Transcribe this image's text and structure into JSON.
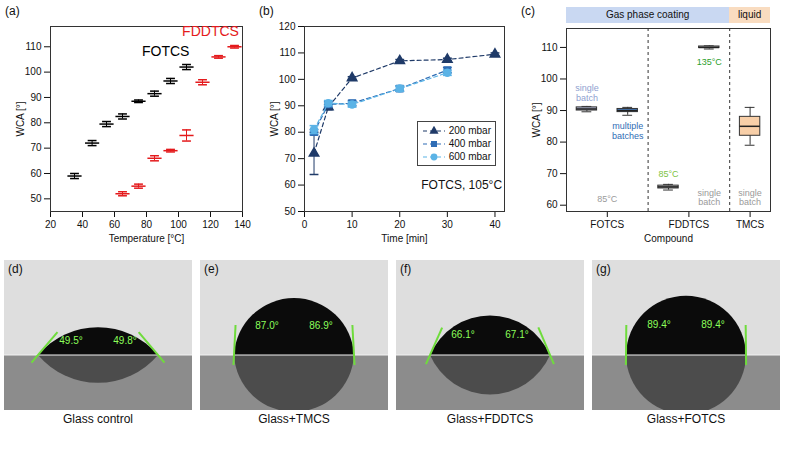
{
  "chart_data": [
    {
      "panel": "(a)",
      "type": "scatter",
      "xlabel": "Temperature [°C]",
      "ylabel": "WCA [°]",
      "xlim": [
        20,
        140
      ],
      "xticks": [
        20,
        40,
        60,
        80,
        100,
        120,
        140
      ],
      "ylim": [
        45,
        118
      ],
      "yticks": [
        50,
        60,
        70,
        80,
        90,
        100,
        110
      ],
      "series": [
        {
          "name": "FOTCS",
          "color": "#000000",
          "marker": "dash",
          "label_x": 92,
          "label_y": 108,
          "x": [
            35,
            46,
            55,
            65,
            75,
            85,
            95,
            105
          ],
          "values": [
            59,
            72,
            79.5,
            82.5,
            88.5,
            91.5,
            96.5,
            102
          ],
          "errors": [
            1,
            1,
            1,
            1,
            0.5,
            1,
            1,
            1
          ]
        },
        {
          "name": "FDDTCS",
          "color": "#e41a1c",
          "marker": "dash",
          "label_x": 120,
          "label_y": 116,
          "x": [
            65,
            75,
            85,
            95,
            105,
            115,
            125,
            135
          ],
          "values": [
            52,
            55,
            66,
            69,
            75,
            96,
            106,
            110
          ],
          "errors": [
            0.8,
            0.8,
            1,
            0.5,
            2.2,
            1,
            0.5,
            0.5
          ]
        }
      ]
    },
    {
      "panel": "(b)",
      "type": "line",
      "xlabel": "Time [min]",
      "ylabel": "WCA [°]",
      "xlim": [
        0,
        42
      ],
      "xticks": [
        0,
        10,
        20,
        30,
        40
      ],
      "ylim": [
        50,
        120
      ],
      "yticks": [
        50,
        60,
        70,
        80,
        90,
        100,
        110,
        120
      ],
      "legend": "bottom-right",
      "line_style": "dashed",
      "series": [
        {
          "name": "200 mbar",
          "color": "#1f3a68",
          "marker": "triangle",
          "x": [
            2,
            5,
            10,
            20,
            30,
            40
          ],
          "values": [
            72,
            89.5,
            100.5,
            107,
            107.5,
            109.5
          ],
          "errors": [
            8,
            1,
            0.5,
            0.5,
            0.5,
            0.5
          ]
        },
        {
          "name": "400 mbar",
          "color": "#2f6db5",
          "marker": "square",
          "x": [
            2,
            5,
            10,
            20,
            30
          ],
          "values": [
            80,
            90.5,
            91,
            96.5,
            103.5
          ],
          "errors": [
            1,
            1,
            1,
            1,
            1
          ]
        },
        {
          "name": "600 mbar",
          "color": "#5bb3e6",
          "marker": "circle",
          "x": [
            2,
            5,
            10,
            20,
            30
          ],
          "values": [
            81,
            91,
            90.5,
            96.5,
            102.5
          ],
          "errors": [
            1.5,
            1,
            1,
            1,
            1
          ]
        }
      ],
      "annotations": [
        {
          "text": "FOTCS, 105°C",
          "x": 33,
          "y": 60,
          "color": "#111111"
        }
      ]
    },
    {
      "panel": "(c)",
      "type": "box",
      "xlabel": "Compound",
      "ylabel": "WCA [°]",
      "ylim": [
        58,
        116
      ],
      "yticks": [
        60,
        70,
        80,
        90,
        100,
        110
      ],
      "headers": [
        {
          "text": "Gas phase coating",
          "groups": [
            "FOTCS",
            "FDDTCS"
          ],
          "color": "#c9d8f2"
        },
        {
          "text": "liquid",
          "groups": [
            "TMCS"
          ],
          "color": "#f9dcc0"
        }
      ],
      "groups": [
        {
          "name": "FOTCS",
          "note": {
            "text": "85°C",
            "color": "#9a9a9a",
            "y": 62
          },
          "boxes": [
            {
              "color": "#b7bdd8",
              "min": 89.6,
              "q1": 90,
              "median": 90.5,
              "q3": 91,
              "max": 91.3,
              "notes": [
                {
                  "text": "single batch",
                  "color": "#8f9fd0",
                  "y": 95.5
                }
              ]
            },
            {
              "color": "#4a7fc1",
              "min": 88.5,
              "q1": 89.5,
              "median": 90,
              "q3": 90.5,
              "max": 91,
              "notes": [
                {
                  "text": "multiple batches",
                  "color": "#2f6db5",
                  "y": 83.5
                }
              ]
            }
          ]
        },
        {
          "name": "FDDTCS",
          "boxes": [
            {
              "color": "#c4c4c4",
              "min": 64.8,
              "q1": 65.3,
              "median": 65.8,
              "q3": 66.2,
              "max": 66.6,
              "notes": [
                {
                  "text": "85°C",
                  "color": "#7cc242",
                  "y": 70
                }
              ]
            },
            {
              "color": "#a8a8a8",
              "min": 109.5,
              "q1": 109.8,
              "median": 110,
              "q3": 110.3,
              "max": 110.5,
              "notes": [
                {
                  "text": "135°C",
                  "color": "#2ca02c",
                  "y": 105.5
                },
                {
                  "text": "single batch",
                  "color": "#9a9a9a",
                  "y": 62.5
                }
              ]
            }
          ]
        },
        {
          "name": "TMCS",
          "boxes": [
            {
              "color": "#f8cfa8",
              "min": 79,
              "q1": 82,
              "median": 85,
              "q3": 88,
              "max": 91,
              "notes": [
                {
                  "text": "single batch",
                  "color": "#9a9a9a",
                  "y": 62.5
                }
              ]
            }
          ]
        }
      ]
    }
  ],
  "images": [
    {
      "panel": "(d)",
      "caption": "Glass control",
      "angles": [
        {
          "value": 49.5,
          "label": "49.5°"
        },
        {
          "value": 49.8,
          "label": "49.8°"
        }
      ]
    },
    {
      "panel": "(e)",
      "caption": "Glass+TMCS",
      "angles": [
        {
          "value": 87.0,
          "label": "87.0°"
        },
        {
          "value": 86.9,
          "label": "86.9°"
        }
      ]
    },
    {
      "panel": "(f)",
      "caption": "Glass+FDDTCS",
      "angles": [
        {
          "value": 66.1,
          "label": "66.1°"
        },
        {
          "value": 67.1,
          "label": "67.1°"
        }
      ]
    },
    {
      "panel": "(g)",
      "caption": "Glass+FOTCS",
      "angles": [
        {
          "value": 89.4,
          "label": "89.4°"
        },
        {
          "value": 89.4,
          "label": "89.4°"
        }
      ]
    }
  ]
}
